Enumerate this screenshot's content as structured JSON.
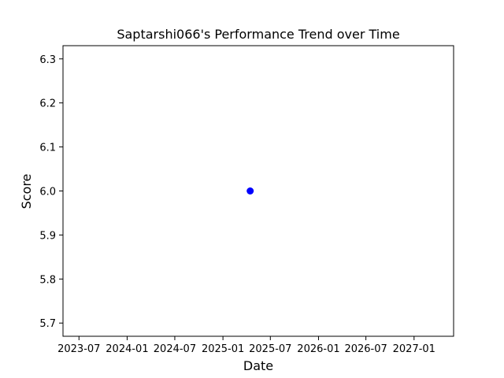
{
  "chart_data": {
    "type": "scatter",
    "title": "Saptarshi066's Performance Trend over Time",
    "xlabel": "Date",
    "ylabel": "Score",
    "x_axis_type": "date",
    "xlim": [
      "2023-05-01",
      "2027-06-01"
    ],
    "ylim": [
      5.67,
      6.33
    ],
    "x_ticks": [
      {
        "date": "2023-07-01",
        "label": "2023-07"
      },
      {
        "date": "2024-01-01",
        "label": "2024-01"
      },
      {
        "date": "2024-07-01",
        "label": "2024-07"
      },
      {
        "date": "2025-01-01",
        "label": "2025-01"
      },
      {
        "date": "2025-07-01",
        "label": "2025-07"
      },
      {
        "date": "2026-01-01",
        "label": "2026-01"
      },
      {
        "date": "2026-07-01",
        "label": "2026-07"
      },
      {
        "date": "2027-01-01",
        "label": "2027-01"
      }
    ],
    "y_ticks": [
      {
        "value": 5.7,
        "label": "5.7"
      },
      {
        "value": 5.8,
        "label": "5.8"
      },
      {
        "value": 5.9,
        "label": "5.9"
      },
      {
        "value": 6.0,
        "label": "6.0"
      },
      {
        "value": 6.1,
        "label": "6.1"
      },
      {
        "value": 6.2,
        "label": "6.2"
      },
      {
        "value": 6.3,
        "label": "6.3"
      }
    ],
    "series": [
      {
        "color": "#0000ff",
        "points": [
          {
            "x": "2025-04-15",
            "y": 6.0
          }
        ]
      }
    ],
    "grid": false,
    "legend": "none"
  }
}
